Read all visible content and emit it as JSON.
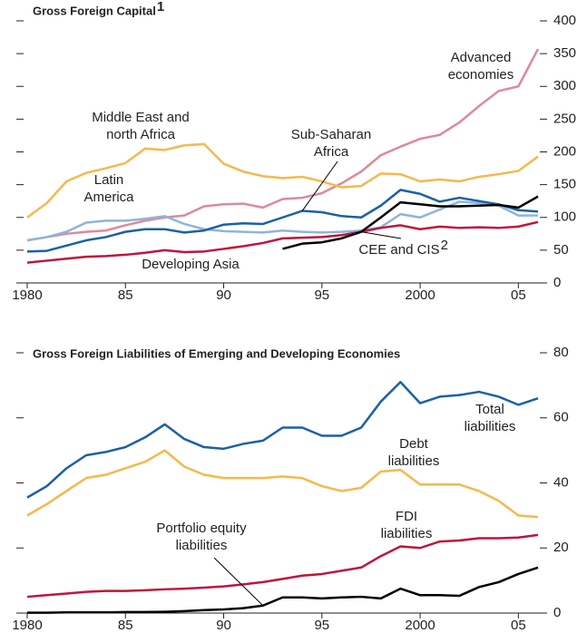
{
  "chart_data": [
    {
      "type": "line",
      "title": "Gross Foreign Capital",
      "title_note": "1",
      "x": [
        1980,
        1981,
        1982,
        1983,
        1984,
        1985,
        1986,
        1987,
        1988,
        1989,
        1990,
        1991,
        1992,
        1993,
        1994,
        1995,
        1996,
        1997,
        1998,
        1999,
        2000,
        2001,
        2002,
        2003,
        2004,
        2005,
        2006
      ],
      "xlim": [
        1980,
        2006
      ],
      "xticks": [
        1980,
        {
          "value": 1985,
          "label": "85"
        },
        {
          "value": 1990,
          "label": "90"
        },
        {
          "value": 1995,
          "label": "95"
        },
        2000,
        {
          "value": 2005,
          "label": "05"
        }
      ],
      "ylim": [
        0,
        400
      ],
      "yticks": [
        0,
        50,
        100,
        150,
        200,
        250,
        300,
        350,
        400
      ],
      "series": [
        {
          "name": "Advanced\neconomies",
          "color": "#e0889a",
          "values": [
            65,
            70,
            75,
            78,
            80,
            88,
            95,
            100,
            103,
            117,
            120,
            121,
            115,
            128,
            130,
            137,
            152,
            170,
            195,
            208,
            220,
            226,
            245,
            270,
            293,
            300,
            357
          ]
        },
        {
          "name": "Middle East and\nnorth Africa",
          "color": "#f7b84a",
          "values": [
            100,
            122,
            155,
            168,
            175,
            183,
            205,
            203,
            210,
            212,
            182,
            170,
            163,
            160,
            162,
            155,
            146,
            148,
            167,
            166,
            155,
            158,
            155,
            162,
            166,
            171,
            193
          ]
        },
        {
          "name": "Latin\nAmerica",
          "color": "#8fb4da",
          "values": [
            65,
            70,
            78,
            92,
            95,
            95,
            98,
            102,
            90,
            82,
            79,
            78,
            77,
            80,
            78,
            77,
            78,
            80,
            85,
            105,
            100,
            112,
            124,
            122,
            118,
            103,
            103
          ]
        },
        {
          "name": "Sub-Saharan\nAfrica",
          "color": "#1a60a8",
          "values": [
            48,
            49,
            57,
            65,
            70,
            78,
            82,
            82,
            77,
            80,
            89,
            91,
            90,
            100,
            110,
            108,
            102,
            100,
            118,
            142,
            136,
            124,
            130,
            125,
            120,
            111,
            109
          ]
        },
        {
          "name": "Developing Asia",
          "color": "#c0143c",
          "values": [
            31,
            34,
            37,
            40,
            41,
            43,
            46,
            50,
            47,
            48,
            52,
            56,
            61,
            68,
            69,
            70,
            73,
            78,
            84,
            88,
            82,
            86,
            84,
            85,
            84,
            86,
            93
          ]
        },
        {
          "name": "CEE and CIS",
          "note": "2",
          "color": "#000000",
          "values": [
            null,
            null,
            null,
            null,
            null,
            null,
            null,
            null,
            null,
            null,
            null,
            null,
            null,
            52,
            60,
            62,
            68,
            78,
            100,
            123,
            120,
            117,
            117,
            118,
            119,
            115,
            132
          ]
        }
      ]
    },
    {
      "type": "line",
      "title": "Gross Foreign Liabilities of Emerging and Developing Economies",
      "x": [
        1980,
        1981,
        1982,
        1983,
        1984,
        1985,
        1986,
        1987,
        1988,
        1989,
        1990,
        1991,
        1992,
        1993,
        1994,
        1995,
        1996,
        1997,
        1998,
        1999,
        2000,
        2001,
        2002,
        2003,
        2004,
        2005,
        2006
      ],
      "xlim": [
        1980,
        2006
      ],
      "xticks": [
        1980,
        {
          "value": 1985,
          "label": "85"
        },
        {
          "value": 1990,
          "label": "90"
        },
        {
          "value": 1995,
          "label": "95"
        },
        2000,
        {
          "value": 2005,
          "label": "05"
        }
      ],
      "ylim": [
        0,
        80
      ],
      "yticks": [
        0,
        20,
        40,
        60,
        80
      ],
      "series": [
        {
          "name": "Total\nliabilities",
          "color": "#1a60a8",
          "values": [
            35.5,
            39,
            44.5,
            48.5,
            49.5,
            51,
            54,
            58,
            53.5,
            51,
            50.5,
            52,
            53,
            57,
            57,
            54.5,
            54.5,
            57,
            65,
            71,
            64.5,
            66.5,
            67,
            68,
            66.5,
            64,
            66
          ]
        },
        {
          "name": "Debt\nliabilities",
          "color": "#f7b84a",
          "values": [
            30,
            33.5,
            37.5,
            41.5,
            42.5,
            44.5,
            46.5,
            50,
            45,
            42.5,
            41.5,
            41.5,
            41.5,
            42,
            41.5,
            39,
            37.5,
            38.5,
            43.5,
            44,
            39.5,
            39.5,
            39.5,
            37.5,
            34.5,
            30,
            29.5
          ]
        },
        {
          "name": "FDI\nliabilities",
          "color": "#c0143c",
          "values": [
            5,
            5.5,
            6,
            6.5,
            6.8,
            6.8,
            7,
            7.3,
            7.5,
            7.8,
            8.2,
            8.8,
            9.5,
            10.5,
            11.5,
            12,
            13,
            14,
            17.5,
            20.5,
            20,
            22,
            22.3,
            23,
            23,
            23.2,
            24
          ]
        },
        {
          "name": "Portfolio equity\nliabilities",
          "color": "#000000",
          "values": [
            0.1,
            0.1,
            0.2,
            0.2,
            0.2,
            0.3,
            0.3,
            0.4,
            0.6,
            0.9,
            1.1,
            1.5,
            2.3,
            4.8,
            4.8,
            4.5,
            4.8,
            5,
            4.5,
            7.5,
            5.5,
            5.5,
            5.3,
            8,
            9.5,
            12,
            14
          ]
        }
      ]
    }
  ]
}
